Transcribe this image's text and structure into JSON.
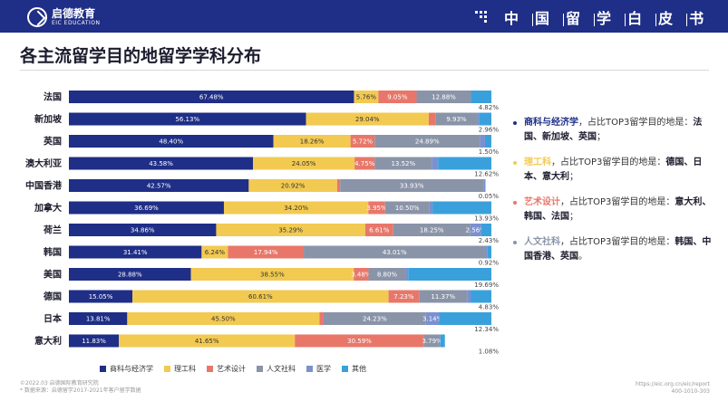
{
  "header": {
    "logo_cn": "启德教育",
    "logo_en": "EIC EDUCATION",
    "series_title": [
      "中",
      "国",
      "留",
      "学",
      "白",
      "皮",
      "书"
    ]
  },
  "page_title": "各主流留学目的地留学学科分布",
  "colors": {
    "header_bg": "#1f2e86",
    "商科与经济学": "#1f2e86",
    "理工科": "#f2ca52",
    "艺术设计": "#e8776a",
    "人文社科": "#8a94a8",
    "医学": "#7a90cf",
    "其他": "#3aa0dc"
  },
  "chart_data": {
    "type": "bar",
    "orientation": "horizontal",
    "stacked": "percent",
    "categories": [
      "法国",
      "新加坡",
      "英国",
      "澳大利亚",
      "中国香港",
      "加拿大",
      "荷兰",
      "韩国",
      "美国",
      "德国",
      "日本",
      "意大利"
    ],
    "series": [
      {
        "name": "商科与经济学",
        "values": [
          67.48,
          56.13,
          48.4,
          43.58,
          42.57,
          36.69,
          34.86,
          31.41,
          28.88,
          15.05,
          13.81,
          11.83
        ]
      },
      {
        "name": "理工科",
        "values": [
          5.76,
          29.04,
          18.26,
          24.05,
          20.92,
          34.2,
          35.29,
          6.24,
          38.55,
          60.61,
          45.5,
          41.65
        ]
      },
      {
        "name": "艺术设计",
        "values": [
          9.05,
          1.59,
          5.72,
          4.75,
          0.72,
          3.95,
          6.61,
          17.94,
          3.48,
          7.23,
          0.98,
          30.59
        ]
      },
      {
        "name": "人文社科",
        "values": [
          12.88,
          9.93,
          24.89,
          13.52,
          33.93,
          10.5,
          18.25,
          43.01,
          8.8,
          11.37,
          24.23,
          3.79
        ]
      },
      {
        "name": "医学",
        "values": [
          0.02,
          0.35,
          1.22,
          1.48,
          0.41,
          0.73,
          2.56,
          0.48,
          0.6,
          0.91,
          3.14,
          0.06
        ]
      },
      {
        "name": "其他",
        "values": [
          4.82,
          2.96,
          1.5,
          12.62,
          0.05,
          13.93,
          2.43,
          0.92,
          19.69,
          4.83,
          12.34,
          1.08
        ]
      }
    ],
    "xlim": [
      0,
      100
    ],
    "legend": "bottom",
    "grid": false
  },
  "notes": [
    {
      "key": "商科与经济学",
      "text": "，占比TOP3留学目的地是：",
      "answer": "法国、新加坡、英国",
      "end": "；",
      "color": "#1f2e86"
    },
    {
      "key": "理工科",
      "text": "，占比TOP3留学目的地是：",
      "answer": "德国、日本、意大利",
      "end": "；",
      "color": "#f2ca52"
    },
    {
      "key": "艺术设计",
      "text": "，占比TOP3留学目的地是：",
      "answer": "意大利、韩国、法国",
      "end": "；",
      "color": "#e8776a"
    },
    {
      "key": "人文社科",
      "text": "，占比TOP3留学目的地是：",
      "answer": "韩国、中国香港、英国",
      "end": "。",
      "color": "#8a94a8"
    }
  ],
  "footer": {
    "left_1": "©2022.03 启德国际教育研究院",
    "left_2": "* 数据来源：启德留学2017-2021年客户留学数据",
    "right_1": "https://eic.org.cn/eic/report",
    "right_2": "400-1010-303"
  }
}
